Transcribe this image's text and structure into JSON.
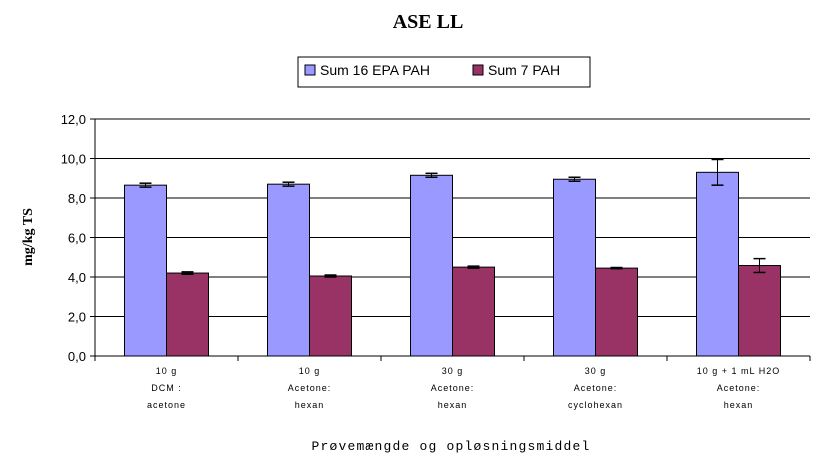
{
  "chart_data": {
    "type": "bar",
    "title": "ASE LL",
    "xlabel": "Prøvemængde og opløsningsmiddel",
    "ylabel": "mg/kg TS",
    "ylim": [
      0,
      12
    ],
    "yticks": [
      "0,0",
      "2,0",
      "4,0",
      "6,0",
      "8,0",
      "10,0",
      "12,0"
    ],
    "grid": true,
    "legend_position": "top-center",
    "categories": [
      [
        "10 g",
        "DCM :",
        "acetone"
      ],
      [
        "10 g",
        "Acetone:",
        "hexan"
      ],
      [
        "30 g",
        "Acetone:",
        "hexan"
      ],
      [
        "30 g",
        "Acetone:",
        "cyclohexan"
      ],
      [
        "10 g + 1 mL H2O",
        "Acetone:",
        "hexan"
      ]
    ],
    "series": [
      {
        "name": "Sum 16 EPA PAH",
        "color": "#9999ff",
        "values": [
          8.65,
          8.7,
          9.15,
          8.95,
          9.3
        ],
        "errors": [
          0.1,
          0.1,
          0.1,
          0.1,
          0.65
        ]
      },
      {
        "name": "Sum 7 PAH",
        "color": "#993366",
        "values": [
          4.2,
          4.05,
          4.5,
          4.45,
          4.58
        ],
        "errors": [
          0.06,
          0.05,
          0.05,
          0.03,
          0.35
        ]
      }
    ]
  }
}
